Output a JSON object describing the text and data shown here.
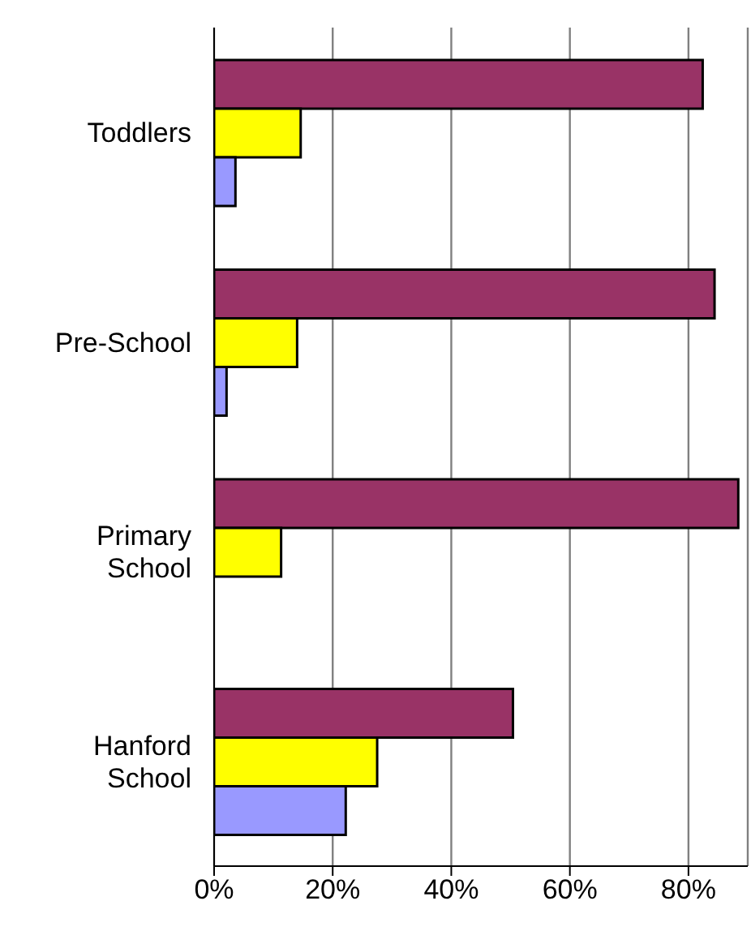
{
  "chart_data": {
    "type": "bar",
    "orientation": "horizontal",
    "categories": [
      "Toddlers",
      "Pre-School",
      "Primary School",
      "Hanford School"
    ],
    "series": [
      {
        "color": "#993366",
        "values": [
          82.4,
          84.4,
          88.4,
          50.4
        ]
      },
      {
        "color": "#ffff00",
        "values": [
          14.6,
          14.0,
          11.3,
          27.5
        ]
      },
      {
        "color": "#9999ff",
        "values": [
          3.6,
          2.1,
          null,
          22.2
        ]
      }
    ],
    "xlim": [
      0,
      90
    ],
    "xticks": [
      {
        "value": 0,
        "label": "0%"
      },
      {
        "value": 20,
        "label": "20%"
      },
      {
        "value": 40,
        "label": "40%"
      },
      {
        "value": 60,
        "label": "60%"
      },
      {
        "value": 80,
        "label": "80%"
      }
    ],
    "grid": "x",
    "legend": false
  }
}
